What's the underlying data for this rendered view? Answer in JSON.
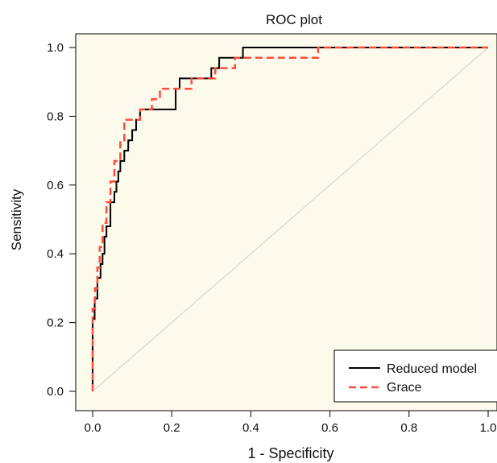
{
  "chart_data": {
    "type": "line",
    "title": "ROC plot",
    "xlabel": "1 - Specificity",
    "ylabel": "Sensitivity",
    "xlim": [
      -0.03,
      1.0
    ],
    "ylim": [
      -0.05,
      1.05
    ],
    "x_ticks": [
      0.0,
      0.2,
      0.4,
      0.6,
      0.8,
      1.0
    ],
    "x_tick_labels": [
      "0.0",
      "0.2",
      "0.4",
      "0.6",
      "0.8",
      "1.0"
    ],
    "y_ticks": [
      0.0,
      0.2,
      0.4,
      0.6,
      0.8,
      1.0
    ],
    "y_tick_labels": [
      "0.0",
      "0.2",
      "0.4",
      "0.6",
      "0.8",
      "1.0"
    ],
    "grid": false,
    "legend_position": "bottom-right",
    "plot_background": "#fcfaeb",
    "reference_line": {
      "x": [
        0,
        1
      ],
      "y": [
        0,
        1
      ],
      "color": "#cfcfcf"
    },
    "series": [
      {
        "name": "Reduced model",
        "color": "#000000",
        "dash": "solid",
        "points": [
          [
            0,
            0
          ],
          [
            0,
            0.21
          ],
          [
            0.005,
            0.21
          ],
          [
            0.005,
            0.27
          ],
          [
            0.012,
            0.27
          ],
          [
            0.012,
            0.33
          ],
          [
            0.02,
            0.33
          ],
          [
            0.02,
            0.37
          ],
          [
            0.025,
            0.37
          ],
          [
            0.025,
            0.4
          ],
          [
            0.03,
            0.4
          ],
          [
            0.03,
            0.45
          ],
          [
            0.035,
            0.45
          ],
          [
            0.035,
            0.48
          ],
          [
            0.045,
            0.48
          ],
          [
            0.045,
            0.55
          ],
          [
            0.055,
            0.55
          ],
          [
            0.055,
            0.58
          ],
          [
            0.06,
            0.58
          ],
          [
            0.06,
            0.61
          ],
          [
            0.065,
            0.61
          ],
          [
            0.065,
            0.64
          ],
          [
            0.07,
            0.64
          ],
          [
            0.07,
            0.67
          ],
          [
            0.08,
            0.67
          ],
          [
            0.08,
            0.7
          ],
          [
            0.09,
            0.7
          ],
          [
            0.09,
            0.73
          ],
          [
            0.1,
            0.73
          ],
          [
            0.1,
            0.76
          ],
          [
            0.11,
            0.76
          ],
          [
            0.11,
            0.79
          ],
          [
            0.12,
            0.79
          ],
          [
            0.12,
            0.82
          ],
          [
            0.21,
            0.82
          ],
          [
            0.21,
            0.88
          ],
          [
            0.22,
            0.88
          ],
          [
            0.22,
            0.91
          ],
          [
            0.3,
            0.91
          ],
          [
            0.3,
            0.94
          ],
          [
            0.32,
            0.94
          ],
          [
            0.32,
            0.97
          ],
          [
            0.38,
            0.97
          ],
          [
            0.38,
            1.0
          ],
          [
            1.0,
            1.0
          ]
        ]
      },
      {
        "name": "Grace",
        "color": "#ff4a3d",
        "dash": "dashed",
        "points": [
          [
            0,
            0
          ],
          [
            0,
            0.24
          ],
          [
            0.006,
            0.24
          ],
          [
            0.006,
            0.3
          ],
          [
            0.012,
            0.3
          ],
          [
            0.012,
            0.36
          ],
          [
            0.018,
            0.36
          ],
          [
            0.018,
            0.42
          ],
          [
            0.025,
            0.42
          ],
          [
            0.025,
            0.49
          ],
          [
            0.035,
            0.49
          ],
          [
            0.035,
            0.55
          ],
          [
            0.045,
            0.55
          ],
          [
            0.045,
            0.61
          ],
          [
            0.055,
            0.61
          ],
          [
            0.055,
            0.67
          ],
          [
            0.07,
            0.67
          ],
          [
            0.07,
            0.73
          ],
          [
            0.08,
            0.73
          ],
          [
            0.08,
            0.79
          ],
          [
            0.12,
            0.79
          ],
          [
            0.12,
            0.82
          ],
          [
            0.15,
            0.82
          ],
          [
            0.15,
            0.85
          ],
          [
            0.17,
            0.85
          ],
          [
            0.17,
            0.88
          ],
          [
            0.25,
            0.88
          ],
          [
            0.25,
            0.91
          ],
          [
            0.31,
            0.91
          ],
          [
            0.31,
            0.94
          ],
          [
            0.36,
            0.94
          ],
          [
            0.36,
            0.97
          ],
          [
            0.57,
            0.97
          ],
          [
            0.57,
            1.0
          ],
          [
            1.0,
            1.0
          ]
        ]
      }
    ]
  }
}
